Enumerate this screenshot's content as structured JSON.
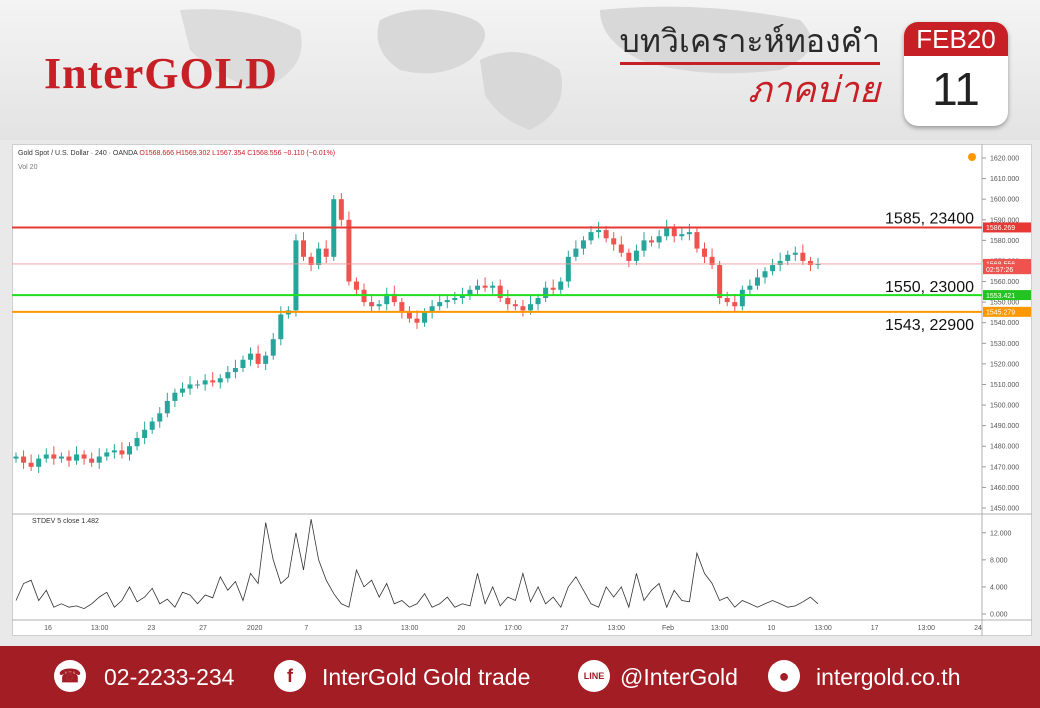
{
  "banner": {
    "logo": "InterGOLD",
    "title_line1": "บทวิเคราะห์ทองคำ",
    "title_line2": "ภาคบ่าย",
    "month_year": "FEB20",
    "day": "11",
    "accent": "#c62026"
  },
  "chart_header": {
    "symbol": "Gold Spot / U.S. Dollar · 240 · OANDA",
    "ohlc": "O1568.666 H1569.302 L1567.354 C1568.556 −0.110 (−0.01%)",
    "volume": "Vol 20"
  },
  "indicator": {
    "name": "STDEV 5 close",
    "value": "1.482"
  },
  "chart_data": [
    {
      "type": "line",
      "title": "Gold Spot / U.S. Dollar · 240 · OANDA",
      "ylim": [
        1450,
        1620
      ],
      "y_ticks": [
        "1620.000",
        "1610.000",
        "1600.000",
        "1590.000",
        "1580.000",
        "1570.000",
        "1560.000",
        "1550.000",
        "1540.000",
        "1530.000",
        "1520.000",
        "1510.000",
        "1500.000",
        "1490.000",
        "1480.000",
        "1470.000",
        "1460.000",
        "1450.000"
      ],
      "x_tick_labels": [
        "16",
        "13:00",
        "23",
        "27",
        "2020",
        "7",
        "13",
        "13:00",
        "20",
        "17:00",
        "27",
        "13:00",
        "Feb",
        "13:00",
        "10",
        "13:00",
        "17",
        "13:00",
        "24"
      ],
      "price_labels": [
        {
          "text": "1586.269",
          "value": 1586.269,
          "color": "#e53935"
        },
        {
          "text": "1568.556",
          "value": 1568.556,
          "color": "#ef5350"
        },
        {
          "text": "02:57:26",
          "value": 1566.0,
          "color": "#ef5350"
        },
        {
          "text": "1553.421",
          "value": 1553.421,
          "color": "#22c422"
        },
        {
          "text": "1545.279",
          "value": 1545.279,
          "color": "#ff9800"
        }
      ],
      "levels": [
        {
          "value": 1586.269,
          "label": "1585, 23400",
          "color": "#e53935"
        },
        {
          "value": 1553.421,
          "label": "1550, 23000",
          "color": "#1ee01e"
        },
        {
          "value": 1545.279,
          "label": "1543, 22900",
          "color": "#ff9800"
        }
      ],
      "series": [
        {
          "values": [
            1475,
            1472,
            1470,
            1474,
            1476,
            1474,
            1475,
            1473,
            1476,
            1474,
            1472,
            1475,
            1477,
            1478,
            1476,
            1480,
            1484,
            1488,
            1492,
            1496,
            1502,
            1506,
            1508,
            1510,
            1510,
            1512,
            1511,
            1513,
            1516,
            1518,
            1522,
            1525,
            1520,
            1524,
            1532,
            1544,
            1546,
            1580,
            1572,
            1568,
            1576,
            1572,
            1600,
            1590,
            1560,
            1556,
            1550,
            1548,
            1549,
            1554,
            1550,
            1545,
            1542,
            1540,
            1545,
            1548,
            1550,
            1551,
            1552,
            1553,
            1556,
            1558,
            1557,
            1558,
            1552,
            1549,
            1548,
            1546,
            1549,
            1552,
            1557,
            1556,
            1560,
            1572,
            1576,
            1580,
            1584,
            1585,
            1581,
            1578,
            1574,
            1570,
            1575,
            1580,
            1579,
            1582,
            1586,
            1582,
            1583,
            1584,
            1576,
            1572,
            1568,
            1552,
            1550,
            1548,
            1556,
            1558,
            1562,
            1565,
            1568,
            1570,
            1573,
            1574,
            1570,
            1568,
            1568.5
          ]
        }
      ],
      "up_color": "#26a69a",
      "down_color": "#ef5350"
    },
    {
      "type": "line",
      "title": "STDEV 5 close",
      "ylim": [
        0,
        13
      ],
      "y_ticks": [
        "12.000",
        "8.000",
        "4.000",
        "0.000"
      ],
      "series": [
        {
          "name": "STDEV 5 close",
          "values": [
            2.0,
            4.5,
            5.0,
            2.0,
            3.5,
            1.0,
            1.5,
            1.0,
            1.2,
            0.8,
            1.5,
            2.5,
            3.2,
            1.0,
            2.0,
            4.0,
            1.8,
            2.5,
            3.8,
            1.5,
            2.2,
            1.0,
            3.2,
            2.8,
            1.5,
            2.8,
            2.4,
            5.5,
            3.5,
            4.8,
            2.0,
            6.0,
            4.5,
            13.5,
            8.0,
            4.5,
            5.5,
            12.0,
            6.5,
            14.0,
            8.0,
            5.0,
            3.0,
            1.5,
            1.0,
            6.5,
            4.0,
            5.0,
            2.5,
            4.5,
            1.5,
            2.0,
            1.0,
            1.5,
            3.0,
            1.0,
            1.5,
            2.5,
            1.0,
            1.5,
            1.2,
            6.0,
            1.5,
            4.0,
            1.2,
            2.5,
            2.0,
            6.0,
            1.8,
            4.0,
            1.5,
            2.5,
            1.0,
            4.0,
            5.5,
            3.5,
            1.5,
            1.0,
            4.0,
            2.5,
            4.0,
            1.0,
            6.0,
            2.0,
            3.5,
            4.5,
            1.0,
            3.5,
            2.0,
            1.8,
            9.0,
            6.0,
            4.5,
            2.0,
            2.5,
            1.0,
            2.0,
            1.5,
            1.0,
            1.5,
            2.0,
            1.5,
            1.0,
            1.2,
            1.8,
            2.5,
            1.5
          ]
        }
      ]
    }
  ],
  "footer": {
    "phone_icon": "phone-icon",
    "phone": "02-2233-234",
    "facebook_icon": "facebook-icon",
    "facebook_glyph": "f",
    "facebook": "InterGold Gold trade",
    "line_icon": "line-icon",
    "line_glyph": "LINE",
    "line": "@InterGold",
    "web_icon": "globe-icon",
    "web": "intergold.co.th",
    "bg": "#a31d24"
  }
}
